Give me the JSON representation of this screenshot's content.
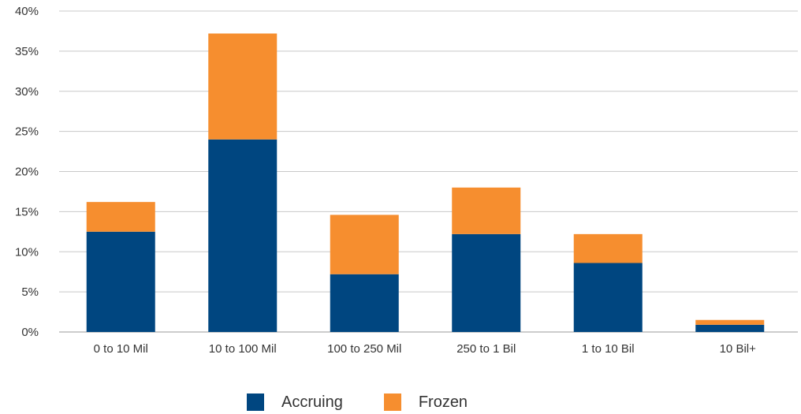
{
  "chart_data": {
    "type": "bar",
    "stacked": true,
    "categories": [
      "0 to 10 Mil",
      "10 to 100 Mil",
      "100 to 250 Mil",
      "250 to 1 Bil",
      "1 to 10 Bil",
      "10 Bil+"
    ],
    "series": [
      {
        "name": "Accruing",
        "color": "#004680",
        "values": [
          12.5,
          24.0,
          7.2,
          12.2,
          8.6,
          0.9
        ]
      },
      {
        "name": "Frozen",
        "color": "#f68e2f",
        "values": [
          3.7,
          13.2,
          7.4,
          5.8,
          3.6,
          0.6
        ]
      }
    ],
    "yticks": [
      "0%",
      "5%",
      "10%",
      "15%",
      "20%",
      "25%",
      "30%",
      "35%",
      "40%"
    ],
    "ylim": [
      0,
      40
    ],
    "grid": true,
    "legend_position": "bottom",
    "title": "",
    "xlabel": "",
    "ylabel": ""
  }
}
